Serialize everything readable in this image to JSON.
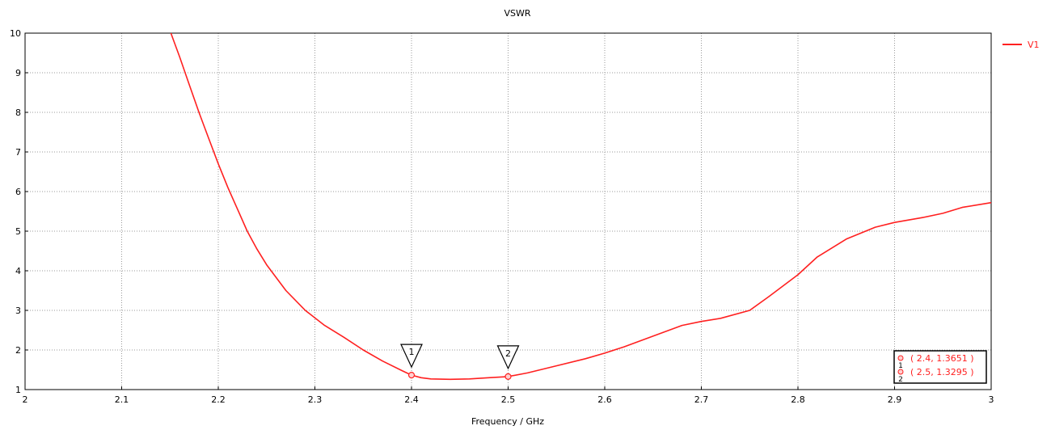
{
  "chart_data": {
    "type": "line",
    "title": "VSWR",
    "xlabel": "Frequency / GHz",
    "ylabel": "",
    "xlim": [
      2,
      3
    ],
    "ylim": [
      1,
      10
    ],
    "x_ticks": [
      2,
      2.1,
      2.2,
      2.3,
      2.4,
      2.5,
      2.6,
      2.7,
      2.8,
      2.9,
      3
    ],
    "x_tick_labels": [
      "2",
      "2.1",
      "2.2",
      "2.3",
      "2.4",
      "2.5",
      "2.6",
      "2.7",
      "2.8",
      "2.9",
      "3"
    ],
    "y_ticks": [
      1,
      2,
      3,
      4,
      5,
      6,
      7,
      8,
      9,
      10
    ],
    "y_tick_labels": [
      "1",
      "2",
      "3",
      "4",
      "5",
      "6",
      "7",
      "8",
      "9",
      "10"
    ],
    "grid": true,
    "legend_position": "top-right",
    "series": [
      {
        "name": "V1",
        "color": "#ff2020",
        "x": [
          2.151,
          2.16,
          2.17,
          2.18,
          2.19,
          2.2,
          2.21,
          2.22,
          2.23,
          2.24,
          2.25,
          2.27,
          2.29,
          2.31,
          2.33,
          2.35,
          2.37,
          2.39,
          2.4,
          2.41,
          2.42,
          2.44,
          2.46,
          2.48,
          2.5,
          2.52,
          2.55,
          2.58,
          2.6,
          2.62,
          2.65,
          2.68,
          2.7,
          2.72,
          2.75,
          2.77,
          2.8,
          2.82,
          2.85,
          2.88,
          2.9,
          2.93,
          2.95,
          2.97,
          3.0
        ],
        "y": [
          10,
          9.4,
          8.7,
          8.0,
          7.35,
          6.7,
          6.1,
          5.55,
          5.0,
          4.55,
          4.15,
          3.5,
          3.0,
          2.62,
          2.32,
          2.0,
          1.72,
          1.48,
          1.3651,
          1.3,
          1.27,
          1.26,
          1.27,
          1.3,
          1.3295,
          1.42,
          1.6,
          1.78,
          1.92,
          2.08,
          2.35,
          2.62,
          2.72,
          2.8,
          3.0,
          3.35,
          3.9,
          4.35,
          4.8,
          5.1,
          5.22,
          5.35,
          5.45,
          5.6,
          5.72
        ]
      }
    ],
    "markers": [
      {
        "id": "1",
        "x": 2.4,
        "y": 1.3651,
        "label": "( 2.4, 1.3651 )"
      },
      {
        "id": "2",
        "x": 2.5,
        "y": 1.3295,
        "label": "( 2.5, 1.3295 )"
      }
    ]
  }
}
